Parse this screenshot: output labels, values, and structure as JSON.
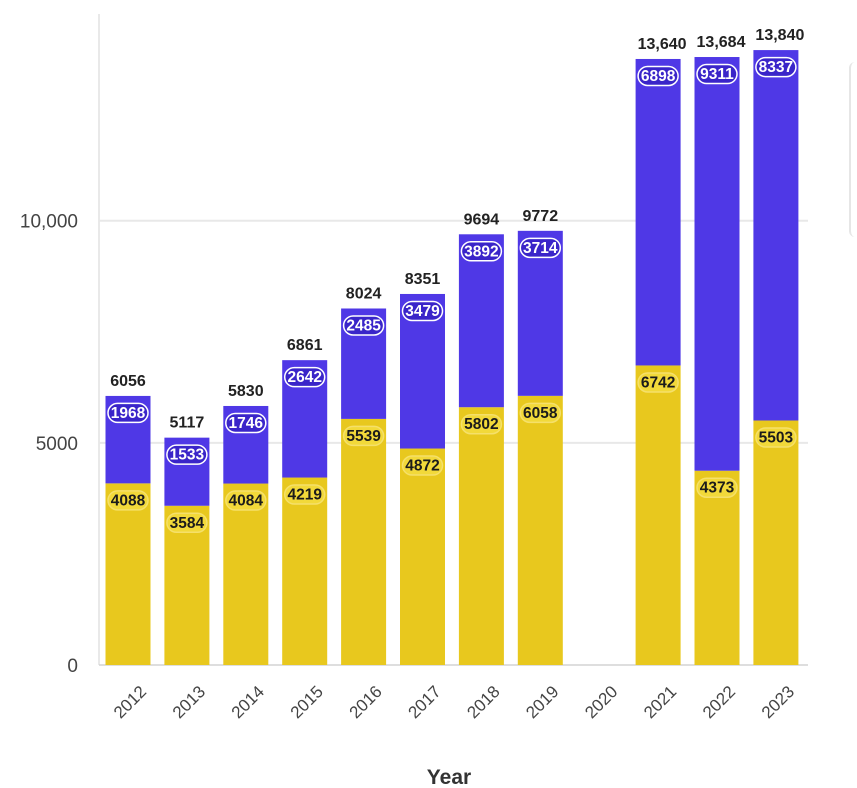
{
  "chart_data": {
    "type": "bar",
    "stacked": true,
    "categories": [
      "2012",
      "2013",
      "2014",
      "2015",
      "2016",
      "2017",
      "2018",
      "2019",
      "2020",
      "2021",
      "2022",
      "2023"
    ],
    "series": [
      {
        "values": [
          4088,
          3584,
          4084,
          4219,
          5539,
          4872,
          5802,
          6058,
          null,
          6742,
          4373,
          5503
        ],
        "color": "#e8c81e"
      },
      {
        "values": [
          1968,
          1533,
          1746,
          2642,
          2485,
          3479,
          3892,
          3714,
          null,
          6898,
          9311,
          8337
        ],
        "color": "#4f38e6"
      }
    ],
    "totals": [
      "6056",
      "5117",
      "5830",
      "6861",
      "8024",
      "8351",
      "9694",
      "9772",
      null,
      "13,640",
      "13,684",
      "13,840"
    ],
    "segment_labels": [
      [
        "4088",
        "3584",
        "4084",
        "4219",
        "5539",
        "4872",
        "5802",
        "6058",
        null,
        "6742",
        "4373",
        "5503"
      ],
      [
        "1968",
        "1533",
        "1746",
        "2642",
        "2485",
        "3479",
        "3892",
        "3714",
        null,
        "6898",
        "9311",
        "8337"
      ]
    ],
    "y_ticks": [
      {
        "value": 0,
        "label": "0"
      },
      {
        "value": 5000,
        "label": "5000"
      },
      {
        "value": 10000,
        "label": "10,000"
      }
    ],
    "ylim": [
      0,
      14500
    ],
    "xlabel": "Year",
    "ylabel": "",
    "grid": true,
    "legend": "right"
  }
}
